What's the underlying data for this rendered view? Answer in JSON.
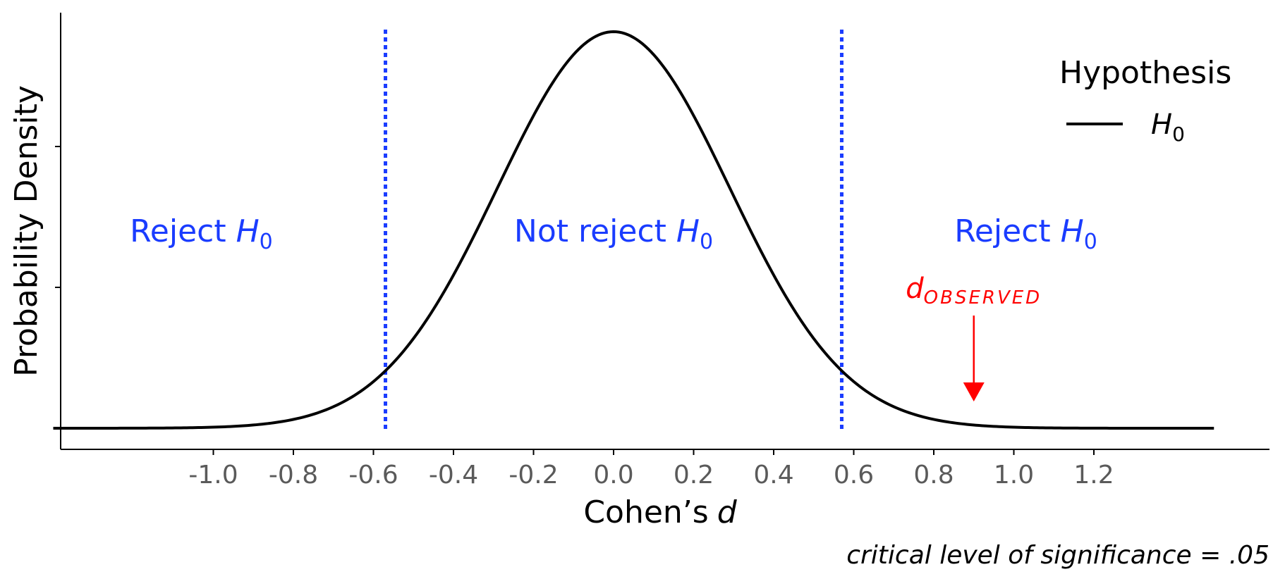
{
  "chart_data": {
    "type": "line",
    "xlabel": "Cohen’s",
    "xlabel_var": "d",
    "ylabel": "Probability Density",
    "x_range": [
      -1.4,
      1.5
    ],
    "x_ticks": [
      -1.0,
      -0.8,
      -0.6,
      -0.4,
      -0.2,
      0.0,
      0.2,
      0.4,
      0.6,
      0.8,
      1.0,
      1.2
    ],
    "x_tick_labels": [
      "-1.0",
      "-0.8",
      "-0.6",
      "-0.4",
      "-0.2",
      "0.0",
      "0.2",
      "0.4",
      "0.6",
      "0.8",
      "1.0",
      "1.2"
    ],
    "y_ticks": [
      0,
      1,
      2,
      3
    ],
    "y_tick_labels_shown": false,
    "grid": false,
    "distribution": {
      "mean": 0.0,
      "sd": 0.29,
      "x_min": -1.4,
      "x_max": 1.5
    },
    "series": [
      {
        "name": "H",
        "name_sub": "0",
        "color": "#000000"
      }
    ],
    "critical_values": [
      -0.57,
      0.57
    ],
    "critical_color": "#1a3cff",
    "region_labels": [
      {
        "text": "Reject ",
        "var": "H",
        "sub": "0",
        "x": -1.03
      },
      {
        "text": "Not reject ",
        "var": "H",
        "sub": "0",
        "x": 0.0
      },
      {
        "text": "Reject ",
        "var": "H",
        "sub": "0",
        "x": 1.03
      }
    ],
    "region_color": "#1a3cff",
    "observed": {
      "x": 0.9,
      "label_main": "d",
      "label_sub": "OBSERVED",
      "color": "#ff0000"
    },
    "legend": {
      "title": "Hypothesis",
      "position": "top-right"
    },
    "caption": {
      "text": "critical level of significance = .05"
    }
  }
}
